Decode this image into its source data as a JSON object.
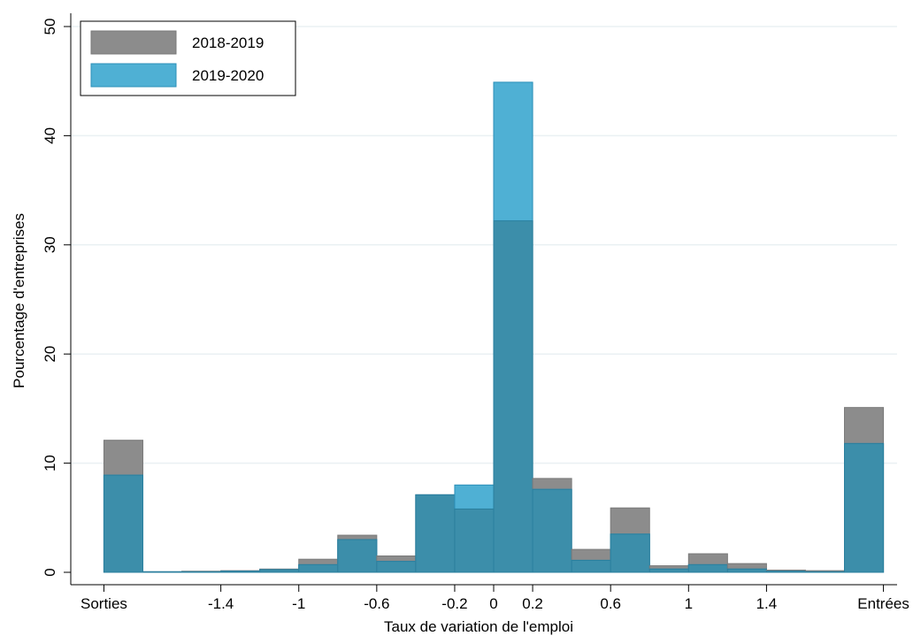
{
  "chart_data": {
    "type": "bar",
    "xlabel": "Taux de variation de l'emploi",
    "ylabel": "Pourcentage d'entreprises",
    "ylim": [
      0,
      50
    ],
    "yticks": [
      0,
      10,
      20,
      30,
      40,
      50
    ],
    "xticks": [
      {
        "label": "Sorties",
        "x": -2
      },
      {
        "label": "-1.4",
        "x": -1.4
      },
      {
        "label": "-1",
        "x": -1
      },
      {
        "label": "-0.6",
        "x": -0.6
      },
      {
        "label": "-0.2",
        "x": -0.2
      },
      {
        "label": "0",
        "x": 0
      },
      {
        "label": "0.2",
        "x": 0.2
      },
      {
        "label": "0.6",
        "x": 0.6
      },
      {
        "label": "1",
        "x": 1
      },
      {
        "label": "1.4",
        "x": 1.4
      },
      {
        "label": "Entrées",
        "x": 2
      }
    ],
    "xlim": [
      -2.17,
      2.07
    ],
    "bins": [
      [
        -2.0,
        -1.8
      ],
      [
        -1.8,
        -1.6
      ],
      [
        -1.6,
        -1.4
      ],
      [
        -1.4,
        -1.2
      ],
      [
        -1.2,
        -1.0
      ],
      [
        -1.0,
        -0.8
      ],
      [
        -0.8,
        -0.6
      ],
      [
        -0.6,
        -0.4
      ],
      [
        -0.4,
        -0.2
      ],
      [
        -0.2,
        0.0
      ],
      [
        0.0,
        0.2
      ],
      [
        0.2,
        0.4
      ],
      [
        0.4,
        0.6
      ],
      [
        0.6,
        0.8
      ],
      [
        0.8,
        1.0
      ],
      [
        1.0,
        1.2
      ],
      [
        1.2,
        1.4
      ],
      [
        1.4,
        1.6
      ],
      [
        1.6,
        1.8
      ],
      [
        1.8,
        2.0
      ]
    ],
    "series": [
      {
        "name": "2018-2019",
        "color": "#8c8c8c",
        "values": [
          12.1,
          0.05,
          0.1,
          0.15,
          0.3,
          1.2,
          3.4,
          1.5,
          7.1,
          5.8,
          32.2,
          8.6,
          2.1,
          5.9,
          0.6,
          1.7,
          0.8,
          0.2,
          0.15,
          15.1
        ]
      },
      {
        "name": "2019-2020",
        "color": "#4fb0d4",
        "values": [
          8.9,
          0.05,
          0.05,
          0.1,
          0.25,
          0.7,
          3.0,
          1.0,
          7.1,
          8.0,
          44.9,
          7.6,
          1.1,
          3.5,
          0.3,
          0.7,
          0.3,
          0.1,
          0.05,
          11.8
        ]
      }
    ],
    "overlap_color": "#3c8eaa",
    "legend_position": "top-left",
    "grid": true
  }
}
